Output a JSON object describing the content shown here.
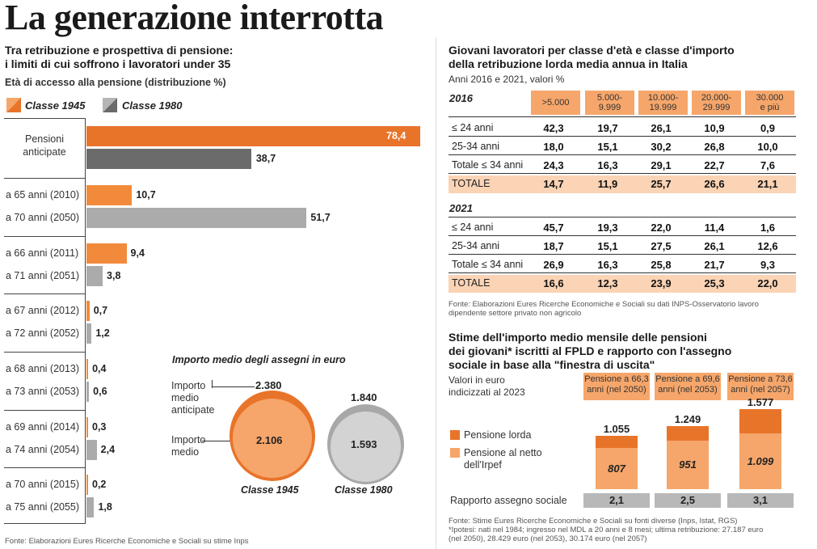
{
  "title": "La generazione interrotta",
  "left": {
    "heading_line1": "Tra retribuzione e prospettiva di pensione:",
    "heading_line2": "i limiti di cui soffrono i lavoratori under 35",
    "subtitle": "Età di accesso alla pensione (distribuzione %)",
    "source": "Fonte: Elaborazioni Eures Ricerche Economiche e Sociali su stime Inps"
  },
  "chart_data": [
    {
      "type": "bar",
      "title": "Età di accesso alla pensione (distribuzione %)",
      "orientation": "horizontal",
      "xlim": [
        0,
        80
      ],
      "legend": "top-left",
      "series": [
        {
          "name": "Classe 1945",
          "color": "#e8742a",
          "pair_first": true
        },
        {
          "name": "Classe 1980",
          "color": "#8a8a8a",
          "pair_first": false
        }
      ],
      "groups": [
        {
          "label_a": "Pensioni anticipate",
          "value_a": 78.4,
          "label_b": "",
          "value_b": 38.7,
          "display_a": "78,4",
          "display_b": "38,7",
          "special": true
        },
        {
          "label_a": "a 65 anni (2010)",
          "value_a": 10.7,
          "display_a": "10,7",
          "label_b": "a 70 anni (2050)",
          "value_b": 51.7,
          "display_b": "51,7"
        },
        {
          "label_a": "a 66 anni (2011)",
          "value_a": 9.4,
          "display_a": "9,4",
          "label_b": "a 71 anni (2051)",
          "value_b": 3.8,
          "display_b": "3,8"
        },
        {
          "label_a": "a 67 anni (2012)",
          "value_a": 0.7,
          "display_a": "0,7",
          "label_b": "a 72 anni (2052)",
          "value_b": 1.2,
          "display_b": "1,2"
        },
        {
          "label_a": "a 68 anni (2013)",
          "value_a": 0.4,
          "display_a": "0,4",
          "label_b": "a 73 anni (2053)",
          "value_b": 0.6,
          "display_b": "0,6"
        },
        {
          "label_a": "a 69 anni (2014)",
          "value_a": 0.3,
          "display_a": "0,3",
          "label_b": "a 74 anni (2054)",
          "value_b": 2.4,
          "display_b": "2,4"
        },
        {
          "label_a": "a 70 anni (2015)",
          "value_a": 0.2,
          "display_a": "0,2",
          "label_b": "a 75 anni (2055)",
          "value_b": 1.8,
          "display_b": "1,8"
        }
      ]
    },
    {
      "type": "bubble",
      "title": "Importo medio degli assegni in euro",
      "label_anticipate_1": "Importo",
      "label_anticipate_2": "medio",
      "label_anticipate_3": "anticipate",
      "label_medio_1": "Importo",
      "label_medio_2": "medio",
      "circles": [
        {
          "name": "Classe 1945",
          "outer": "2.380",
          "inner": "2.106"
        },
        {
          "name": "Classe 1980",
          "outer": "1.840",
          "inner": "1.593"
        }
      ]
    },
    {
      "type": "table",
      "title_line1": "Giovani lavoratori per classe d'età e classe d'importo",
      "title_line2": "della retribuzione lorda media annua in Italia",
      "subtitle": "Anni 2016 e 2021, valori %",
      "columns": [
        ">5.000",
        "5.000-\n9.999",
        "10.000-\n19.999",
        "20.000-\n29.999",
        "30.000\ne più"
      ],
      "blocks": [
        {
          "year": "2016",
          "rows": [
            {
              "label": "≤ 24 anni",
              "values": [
                "42,3",
                "19,7",
                "26,1",
                "10,9",
                "0,9"
              ]
            },
            {
              "label": "25-34 anni",
              "values": [
                "18,0",
                "15,1",
                "30,2",
                "26,8",
                "10,0"
              ]
            },
            {
              "label": "Totale ≤ 34 anni",
              "values": [
                "24,3",
                "16,3",
                "29,1",
                "22,7",
                "7,6"
              ]
            },
            {
              "label": "TOTALE",
              "values": [
                "14,7",
                "11,9",
                "25,7",
                "26,6",
                "21,1"
              ]
            }
          ]
        },
        {
          "year": "2021",
          "rows": [
            {
              "label": "≤ 24 anni",
              "values": [
                "45,7",
                "19,3",
                "22,0",
                "11,4",
                "1,6"
              ]
            },
            {
              "label": "25-34 anni",
              "values": [
                "18,7",
                "15,1",
                "27,5",
                "26,1",
                "12,6"
              ]
            },
            {
              "label": "Totale ≤ 34 anni",
              "values": [
                "26,9",
                "16,3",
                "25,8",
                "21,7",
                "9,3"
              ]
            },
            {
              "label": "TOTALE",
              "values": [
                "16,6",
                "12,3",
                "23,9",
                "25,3",
                "22,0"
              ]
            }
          ]
        }
      ],
      "source_line1": "Fonte: Elaborazioni Eures Ricerche Economiche e Sociali su dati INPS-Osservatorio lavoro",
      "source_line2": "dipendente settore privato non agricolo"
    },
    {
      "type": "bar",
      "title_line1": "Stime dell'importo medio mensile delle pensioni",
      "title_line2": "dei giovani* iscritti al FPLD e rapporto con l'assegno",
      "title_line3": "sociale in base alla \"finestra di uscita\"",
      "subtitle_line1": "Valori in euro",
      "subtitle_line2": "indicizzati al 2023",
      "legend": [
        {
          "name": "Pensione lorda",
          "color": "#e8742a"
        },
        {
          "name_line1": "Pensione al netto",
          "name_line2": "dell'Irpef",
          "color": "#f6a66a"
        }
      ],
      "ratio_label": "Rapporto assegno sociale",
      "ylim": [
        0,
        1600
      ],
      "columns": [
        {
          "header_line1": "Pensione a 66,3",
          "header_line2": "anni (nel 2050)",
          "lorda": 1055,
          "netto": 807,
          "lorda_display": "1.055",
          "netto_display": "807",
          "ratio": "2,1"
        },
        {
          "header_line1": "Pensione a 69,6",
          "header_line2": "anni (nel 2053)",
          "lorda": 1249,
          "netto": 951,
          "lorda_display": "1.249",
          "netto_display": "951",
          "ratio": "2,5"
        },
        {
          "header_line1": "Pensione a 73,6",
          "header_line2": "anni (nel 2057)",
          "lorda": 1577,
          "netto": 1099,
          "lorda_display": "1.577",
          "netto_display": "1.099",
          "ratio": "3,1"
        }
      ],
      "source_line1": "Fonte: Stime Eures Ricerche Economiche e Sociali su fonti diverse (Inps, Istat, RGS)",
      "source_line2": "*Ipotesi: nati nel 1984; ingresso nel MDL a 20 anni e 8 mesi; ultima retribuzione: 27.187 euro",
      "source_line3": "(nel 2050), 28.429 euro (nel 2053), 30.174 euro (nel 2057)"
    }
  ],
  "colors": {
    "orange_dark": "#e8742a",
    "orange_light": "#f6a66a",
    "grey_dark": "#6b6b6b",
    "grey_light": "#ababab",
    "band": "#fbd3b5"
  }
}
